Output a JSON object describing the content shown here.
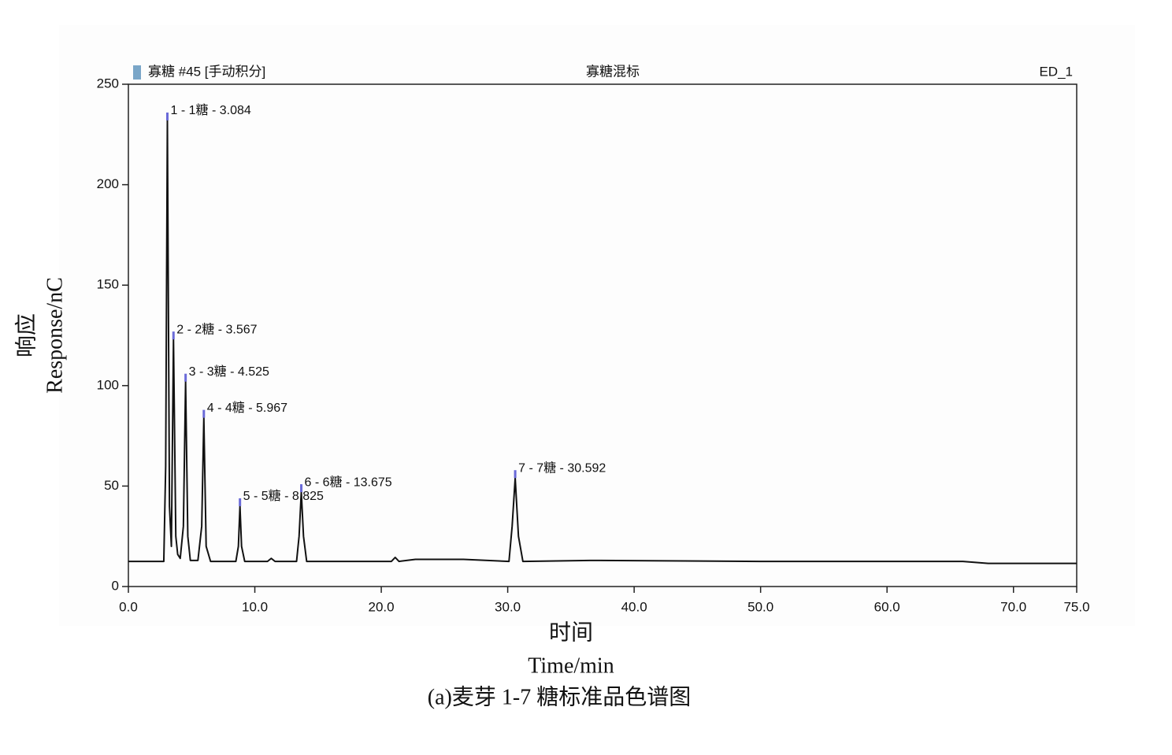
{
  "chart_data": {
    "type": "line",
    "header_left": "寡糖 #45 [手动积分]",
    "title": "寡糖混标",
    "header_right": "ED_1",
    "y_label": [
      "响应",
      "Response/nC"
    ],
    "x_label": [
      "时间",
      "Time/min"
    ],
    "caption": "(a)麦芽 1-7 糖标准品色谱图",
    "color": "#111111",
    "marker_color": "#6a6ad8",
    "x": [
      0,
      2.8,
      2.95,
      3.084,
      3.25,
      3.4,
      3.567,
      3.75,
      3.9,
      4.1,
      4.35,
      4.525,
      4.7,
      4.9,
      5.5,
      5.8,
      5.967,
      6.15,
      6.5,
      8.5,
      8.7,
      8.825,
      8.95,
      9.2,
      11.0,
      11.3,
      11.6,
      13.3,
      13.5,
      13.675,
      13.85,
      14.1,
      20.8,
      21.1,
      21.4,
      22.7,
      26.5,
      30.1,
      30.35,
      30.592,
      30.85,
      31.2,
      36.5,
      50,
      66,
      68,
      75
    ],
    "values": [
      12.5,
      12.5,
      60,
      232,
      40,
      20,
      123,
      25,
      16,
      14,
      30,
      102,
      25,
      13,
      13,
      30,
      84,
      20,
      12.5,
      12.5,
      20,
      40,
      20,
      12.5,
      12.5,
      14,
      12.5,
      12.5,
      25,
      47,
      25,
      12.5,
      12.5,
      14.5,
      12.5,
      13.5,
      13.5,
      12.5,
      30,
      54,
      25,
      12.5,
      13,
      12.5,
      12.5,
      11.5,
      11.5
    ],
    "peaks": [
      {
        "label": "1 - 1糖 - 3.084",
        "x": 3.084,
        "y": 232
      },
      {
        "label": "2 - 2糖 - 3.567",
        "x": 3.567,
        "y": 123
      },
      {
        "label": "3 - 3糖 - 4.525",
        "x": 4.525,
        "y": 102
      },
      {
        "label": "4 - 4糖 - 5.967",
        "x": 5.967,
        "y": 84
      },
      {
        "label": "5 - 5糖 - 8.825",
        "x": 8.825,
        "y": 40
      },
      {
        "label": "6 - 6糖 - 13.675",
        "x": 13.675,
        "y": 47
      },
      {
        "label": "7 - 7糖 - 30.592",
        "x": 30.592,
        "y": 54
      }
    ],
    "xlim": [
      0,
      75
    ],
    "xticks": [
      {
        "value": 0,
        "label": "0.0"
      },
      {
        "value": 10,
        "label": "10.0"
      },
      {
        "value": 20,
        "label": "20.0"
      },
      {
        "value": 30,
        "label": "30.0"
      },
      {
        "value": 40,
        "label": "40.0"
      },
      {
        "value": 50,
        "label": "50.0"
      },
      {
        "value": 60,
        "label": "60.0"
      },
      {
        "value": 70,
        "label": "70.0"
      },
      {
        "value": 75,
        "label": "75.0"
      }
    ],
    "ylim": [
      0,
      250
    ],
    "yticks": [
      0,
      50,
      100,
      150,
      200,
      250
    ]
  }
}
